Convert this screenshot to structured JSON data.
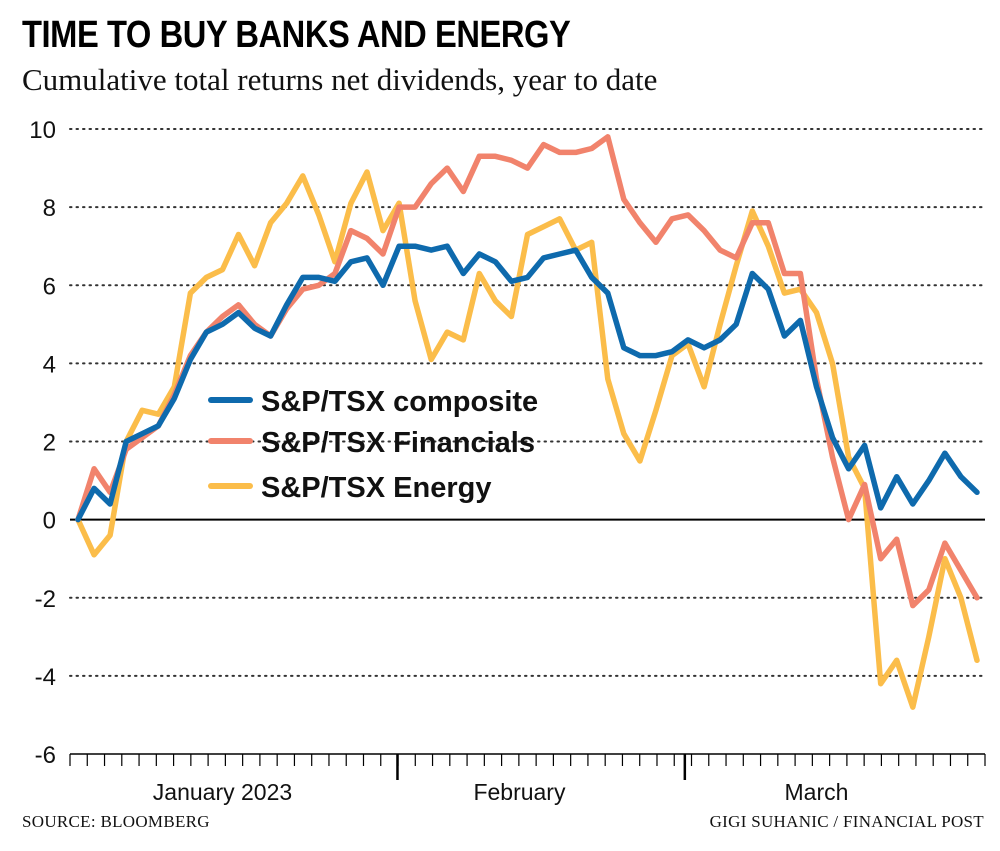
{
  "header": {
    "title": "TIME TO BUY BANKS AND ENERGY",
    "subtitle": "Cumulative total returns net dividends, year to date"
  },
  "footer": {
    "source": "SOURCE: BLOOMBERG",
    "credit": "GIGI SUHANIC / FINANCIAL POST"
  },
  "chart_data": {
    "type": "line",
    "title": "TIME TO BUY BANKS AND ENERGY",
    "subtitle": "Cumulative total returns net dividends, year to date",
    "xlabel": "",
    "ylabel": "",
    "ylim": [
      -6,
      10
    ],
    "yticks": [
      10,
      8,
      6,
      4,
      2,
      0,
      -2,
      -4,
      -6
    ],
    "grid": "horizontal dotted",
    "legend_position": "center-left",
    "x_labels": [
      {
        "label": "January 2023",
        "index": 9
      },
      {
        "label": "February",
        "index": 27.5
      },
      {
        "label": "March",
        "index": 46
      }
    ],
    "x_day_ticks": 54,
    "x_month_dividers": [
      19.9,
      37.8
    ],
    "series": [
      {
        "name": "S&P/TSX composite",
        "color": "#0e6aad",
        "values": [
          0.0,
          0.8,
          0.4,
          2.0,
          2.2,
          2.4,
          3.1,
          4.1,
          4.8,
          5.0,
          5.3,
          4.9,
          4.7,
          5.5,
          6.2,
          6.2,
          6.1,
          6.6,
          6.7,
          6.0,
          7.0,
          7.0,
          6.9,
          7.0,
          6.3,
          6.8,
          6.6,
          6.1,
          6.2,
          6.7,
          6.8,
          6.9,
          6.2,
          5.8,
          4.4,
          4.2,
          4.2,
          4.3,
          4.6,
          4.4,
          4.6,
          5.0,
          6.3,
          5.9,
          4.7,
          5.1,
          3.4,
          2.1,
          1.3,
          1.9,
          0.3,
          1.1,
          0.4,
          1.0,
          1.7,
          1.1,
          0.7
        ]
      },
      {
        "name": "S&P/TSX Financials",
        "color": "#f1836c",
        "values": [
          0.0,
          1.3,
          0.7,
          1.8,
          2.1,
          2.4,
          3.2,
          4.2,
          4.8,
          5.2,
          5.5,
          5.0,
          4.7,
          5.4,
          5.9,
          6.0,
          6.3,
          7.4,
          7.2,
          6.8,
          8.0,
          8.0,
          8.6,
          9.0,
          8.4,
          9.3,
          9.3,
          9.2,
          9.0,
          9.6,
          9.4,
          9.4,
          9.5,
          9.8,
          8.2,
          7.6,
          7.1,
          7.7,
          7.8,
          7.4,
          6.9,
          6.7,
          7.6,
          7.6,
          6.3,
          6.3,
          3.6,
          1.6,
          0.0,
          0.9,
          -1.0,
          -0.5,
          -2.2,
          -1.8,
          -0.6,
          -1.3,
          -2.0
        ]
      },
      {
        "name": "S&P/TSX Energy",
        "color": "#fbbd4a",
        "values": [
          0.0,
          -0.9,
          -0.4,
          2.0,
          2.8,
          2.7,
          3.4,
          5.8,
          6.2,
          6.4,
          7.3,
          6.5,
          7.6,
          8.1,
          8.8,
          7.8,
          6.6,
          8.1,
          8.9,
          7.4,
          8.1,
          5.6,
          4.1,
          4.8,
          4.6,
          6.3,
          5.6,
          5.2,
          7.3,
          7.5,
          7.7,
          6.9,
          7.1,
          3.6,
          2.2,
          1.5,
          2.8,
          4.2,
          4.5,
          3.4,
          5.0,
          6.5,
          7.9,
          7.0,
          5.8,
          5.9,
          5.3,
          4.0,
          1.6,
          0.8,
          -4.2,
          -3.6,
          -4.8,
          -3.0,
          -1.0,
          -2.0,
          -3.6
        ]
      }
    ]
  }
}
